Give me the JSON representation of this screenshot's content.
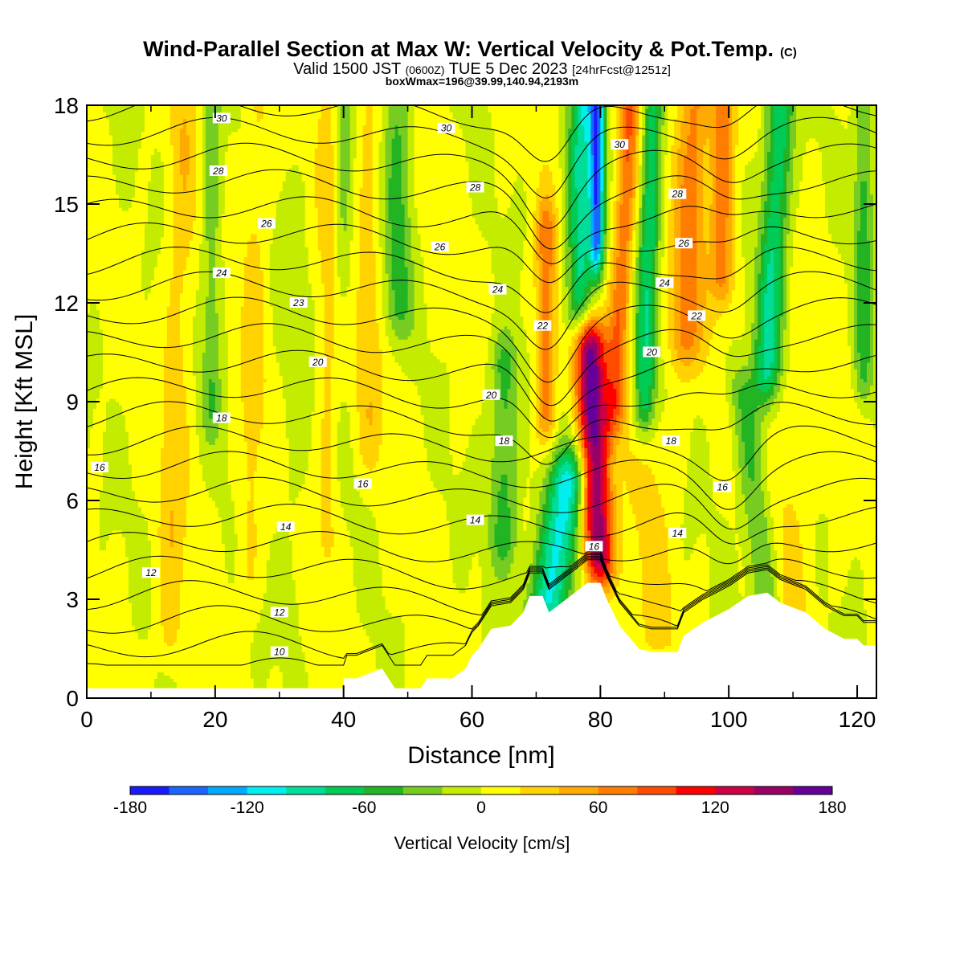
{
  "title": {
    "main": "Wind-Parallel Section at Max W: Vertical Velocity & Pot.Temp.",
    "copyright": "(C)",
    "valid_prefix": "Valid 1500 JST",
    "valid_utc": "(0600Z)",
    "valid_date": "TUE 5 Dec 2023",
    "forecast": "[24hrFcst@1251z]",
    "boxw": "boxWmax=196@39.99,140.94,2193m"
  },
  "chart_data": {
    "type": "heatmap",
    "xlabel": "Distance [nm]",
    "ylabel": "Height [Kft MSL]",
    "xlim": [
      0,
      123
    ],
    "ylim": [
      0,
      18
    ],
    "x_ticks": [
      "0",
      "20",
      "40",
      "60",
      "80",
      "100",
      "120"
    ],
    "y_ticks": [
      "0",
      "3",
      "6",
      "9",
      "12",
      "15",
      "18"
    ],
    "colorbar": {
      "label": "Vertical Velocity [cm/s]",
      "ticks": [
        "-180",
        "-120",
        "-60",
        "0",
        "60",
        "120",
        "180"
      ],
      "min": -180,
      "max": 180,
      "colors": [
        "#1a1aff",
        "#1a66ff",
        "#00aaff",
        "#00eeee",
        "#00dd99",
        "#00cc55",
        "#22b422",
        "#77cc22",
        "#c4ec00",
        "#ffff00",
        "#ffd200",
        "#ffaa00",
        "#ff7d00",
        "#ff4b00",
        "#ff0000",
        "#cc0044",
        "#990066",
        "#660099"
      ]
    },
    "terrain_kft": [
      [
        0,
        0.3
      ],
      [
        40,
        0.3
      ],
      [
        40,
        0.6
      ],
      [
        42,
        0.6
      ],
      [
        46,
        0.9
      ],
      [
        48,
        0.3
      ],
      [
        52,
        0.3
      ],
      [
        53,
        0.6
      ],
      [
        57,
        0.6
      ],
      [
        59,
        0.9
      ],
      [
        60,
        1.3
      ],
      [
        61,
        1.5
      ],
      [
        62,
        1.8
      ],
      [
        63,
        2.1
      ],
      [
        66,
        2.2
      ],
      [
        68,
        2.6
      ],
      [
        69,
        3.1
      ],
      [
        71,
        3.1
      ],
      [
        72,
        2.6
      ],
      [
        74,
        2.9
      ],
      [
        76,
        3.2
      ],
      [
        78,
        3.5
      ],
      [
        80,
        3.5
      ],
      [
        81,
        3.0
      ],
      [
        82,
        2.6
      ],
      [
        83,
        2.2
      ],
      [
        86,
        1.5
      ],
      [
        88,
        1.4
      ],
      [
        92,
        1.4
      ],
      [
        93,
        1.9
      ],
      [
        96,
        2.3
      ],
      [
        100,
        2.7
      ],
      [
        103,
        3.1
      ],
      [
        106,
        3.2
      ],
      [
        108,
        2.9
      ],
      [
        112,
        2.6
      ],
      [
        115,
        2.1
      ],
      [
        118,
        1.8
      ],
      [
        120,
        1.8
      ],
      [
        121,
        1.6
      ],
      [
        123,
        1.6
      ]
    ],
    "wind_columns": [
      {
        "x": 14,
        "w": 2.2,
        "amp": 28,
        "z0": 2,
        "z1": 18,
        "slope": 0.15
      },
      {
        "x": 19.5,
        "w": 1.6,
        "amp": -38,
        "z0": 9,
        "z1": 18,
        "slope": 0
      },
      {
        "x": 26,
        "w": 2.0,
        "amp": 22,
        "z0": 4,
        "z1": 18,
        "slope": 0.1
      },
      {
        "x": 32,
        "w": 2.2,
        "amp": -12,
        "z0": 3,
        "z1": 15,
        "slope": 0
      },
      {
        "x": 37.5,
        "w": 1.5,
        "amp": 24,
        "z0": 5,
        "z1": 18,
        "slope": 0
      },
      {
        "x": 40,
        "w": 1.3,
        "amp": -30,
        "z0": 13,
        "z1": 18,
        "slope": 0
      },
      {
        "x": 44,
        "w": 2.0,
        "amp": 26,
        "z0": 8,
        "z1": 18,
        "slope": 0
      },
      {
        "x": 48.5,
        "w": 2.2,
        "amp": -48,
        "z0": 12,
        "z1": 18,
        "slope": 0
      },
      {
        "x": 65,
        "w": 2.3,
        "amp": -55,
        "z0": 5,
        "z1": 10,
        "slope": 0
      },
      {
        "x": 71.5,
        "w": 1.6,
        "amp": 70,
        "z0": 9,
        "z1": 14,
        "slope": 0
      },
      {
        "x": 77,
        "w": 2.1,
        "amp": -95,
        "z0": 12,
        "z1": 18,
        "slope": 0.1
      },
      {
        "x": 79.5,
        "w": 1.1,
        "amp": -140,
        "z0": 14,
        "z1": 18,
        "slope": 0
      },
      {
        "x": 79,
        "w": 2.4,
        "amp": 165,
        "z0": 4.5,
        "z1": 10.5,
        "slope": -0.2
      },
      {
        "x": 73.5,
        "w": 3.4,
        "amp": -110,
        "z0": 3,
        "z1": 6.5,
        "slope": 0.8
      },
      {
        "x": 83.5,
        "w": 1.7,
        "amp": 75,
        "z0": 9,
        "z1": 18,
        "slope": 0.25
      },
      {
        "x": 87.5,
        "w": 1.7,
        "amp": -78,
        "z0": 9,
        "z1": 18,
        "slope": 0.15
      },
      {
        "x": 94,
        "w": 2.5,
        "amp": 65,
        "z0": 11,
        "z1": 18,
        "slope": 0.2
      },
      {
        "x": 99,
        "w": 1.9,
        "amp": 70,
        "z0": 13,
        "z1": 18,
        "slope": 0
      },
      {
        "x": 107,
        "w": 2.2,
        "amp": -85,
        "z0": 10,
        "z1": 18,
        "slope": 0.25
      },
      {
        "x": 104,
        "w": 2.3,
        "amp": -50,
        "z0": 3,
        "z1": 9,
        "slope": -0.6
      },
      {
        "x": 110,
        "w": 3.5,
        "amp": 20,
        "z0": 3,
        "z1": 9,
        "slope": 0
      },
      {
        "x": 121,
        "w": 1.5,
        "amp": -50,
        "z0": 10,
        "z1": 18,
        "slope": 0
      },
      {
        "x": 88,
        "w": 3.5,
        "amp": 18,
        "z0": 2,
        "z1": 8,
        "slope": 0
      }
    ],
    "theta_levels": [
      8,
      9,
      10,
      11,
      12,
      13,
      14,
      15,
      16,
      17,
      18,
      19,
      20,
      21,
      22,
      23,
      24,
      25,
      26,
      27,
      28,
      29,
      30
    ],
    "theta_labels": [
      {
        "text": "30",
        "x": 21,
        "z": 17.6
      },
      {
        "text": "30",
        "x": 56,
        "z": 17.3
      },
      {
        "text": "30",
        "x": 83,
        "z": 16.8
      },
      {
        "text": "28",
        "x": 20.5,
        "z": 16.0
      },
      {
        "text": "28",
        "x": 60.5,
        "z": 15.5
      },
      {
        "text": "28",
        "x": 92,
        "z": 15.3
      },
      {
        "text": "26",
        "x": 28,
        "z": 14.4
      },
      {
        "text": "26",
        "x": 55,
        "z": 13.7
      },
      {
        "text": "26",
        "x": 93,
        "z": 13.8
      },
      {
        "text": "24",
        "x": 21,
        "z": 12.9
      },
      {
        "text": "24",
        "x": 64,
        "z": 12.4
      },
      {
        "text": "24",
        "x": 90,
        "z": 12.6
      },
      {
        "text": "23",
        "x": 33,
        "z": 12.0
      },
      {
        "text": "22",
        "x": 71,
        "z": 11.3
      },
      {
        "text": "22",
        "x": 95,
        "z": 11.6
      },
      {
        "text": "20",
        "x": 36,
        "z": 10.2
      },
      {
        "text": "20",
        "x": 63,
        "z": 9.2
      },
      {
        "text": "20",
        "x": 88,
        "z": 10.5
      },
      {
        "text": "18",
        "x": 21,
        "z": 8.5
      },
      {
        "text": "18",
        "x": 65,
        "z": 7.8
      },
      {
        "text": "18",
        "x": 91,
        "z": 7.8
      },
      {
        "text": "16",
        "x": 2,
        "z": 7.0
      },
      {
        "text": "16",
        "x": 43,
        "z": 6.5
      },
      {
        "text": "16",
        "x": 79,
        "z": 4.6
      },
      {
        "text": "16",
        "x": 99,
        "z": 6.4
      },
      {
        "text": "14",
        "x": 31,
        "z": 5.2
      },
      {
        "text": "14",
        "x": 60.5,
        "z": 5.4
      },
      {
        "text": "14",
        "x": 92,
        "z": 5.0
      },
      {
        "text": "12",
        "x": 10,
        "z": 3.8
      },
      {
        "text": "12",
        "x": 30,
        "z": 2.6
      },
      {
        "text": "10",
        "x": 30,
        "z": 1.4
      }
    ]
  }
}
